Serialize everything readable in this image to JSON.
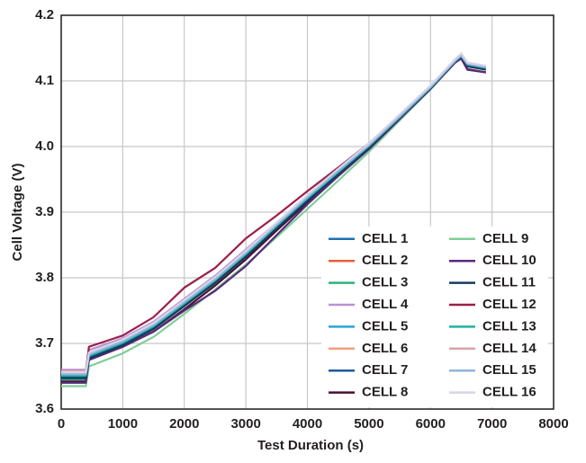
{
  "chart_data": {
    "type": "line",
    "x_label": "Test Duration (s)",
    "y_label": "Cell Voltage (V)",
    "x": [
      0,
      400,
      450,
      1000,
      1500,
      2000,
      2500,
      3000,
      3500,
      4000,
      4500,
      5000,
      5500,
      6000,
      6400,
      6500,
      6600,
      6900
    ],
    "xlim": [
      0,
      8000
    ],
    "xticks": [
      0,
      1000,
      2000,
      3000,
      4000,
      5000,
      6000,
      7000,
      8000
    ],
    "ylim": [
      3.6,
      4.2
    ],
    "yticks": [
      3.6,
      3.7,
      3.8,
      3.9,
      {
        "value": 4,
        "label": "4.0"
      },
      4.1,
      4.2
    ],
    "grid": true,
    "legend": "lower right",
    "series": [
      {
        "name": "CELL 1",
        "color": "#1f6fb2",
        "values": [
          3.65,
          3.65,
          3.68,
          3.7,
          3.725,
          3.76,
          3.795,
          3.835,
          3.878,
          3.92,
          3.96,
          4.0,
          4.045,
          4.09,
          4.13,
          4.138,
          4.125,
          4.12
        ]
      },
      {
        "name": "CELL 2",
        "color": "#e8603c",
        "values": [
          3.655,
          3.655,
          3.685,
          3.703,
          3.728,
          3.763,
          3.798,
          3.838,
          3.88,
          3.922,
          3.962,
          4.002,
          4.046,
          4.09,
          4.131,
          4.139,
          4.126,
          4.121
        ]
      },
      {
        "name": "CELL 3",
        "color": "#2cb27a",
        "values": [
          3.645,
          3.645,
          3.678,
          3.698,
          3.722,
          3.757,
          3.792,
          3.832,
          3.875,
          3.918,
          3.958,
          3.999,
          4.044,
          4.089,
          4.13,
          4.137,
          4.124,
          4.119
        ]
      },
      {
        "name": "CELL 4",
        "color": "#b993d1",
        "values": [
          3.66,
          3.66,
          3.69,
          3.708,
          3.733,
          3.768,
          3.803,
          3.843,
          3.884,
          3.925,
          3.965,
          4.004,
          4.048,
          4.092,
          4.133,
          4.14,
          4.127,
          4.122
        ]
      },
      {
        "name": "CELL 5",
        "color": "#2aa3d8",
        "values": [
          3.652,
          3.652,
          3.682,
          3.702,
          3.727,
          3.762,
          3.797,
          3.837,
          3.88,
          3.922,
          3.961,
          4.001,
          4.046,
          4.09,
          4.131,
          4.138,
          4.125,
          4.12
        ]
      },
      {
        "name": "CELL 6",
        "color": "#f2a07b",
        "values": [
          3.657,
          3.657,
          3.686,
          3.705,
          3.73,
          3.765,
          3.8,
          3.84,
          3.882,
          3.923,
          3.963,
          4.002,
          4.046,
          4.091,
          4.131,
          4.139,
          4.126,
          4.121
        ]
      },
      {
        "name": "CELL 7",
        "color": "#1e5a96",
        "values": [
          3.648,
          3.648,
          3.678,
          3.698,
          3.723,
          3.758,
          3.793,
          3.833,
          3.876,
          3.918,
          3.959,
          3.999,
          4.044,
          4.089,
          4.13,
          4.137,
          4.124,
          4.119
        ]
      },
      {
        "name": "CELL 8",
        "color": "#4a1030",
        "values": [
          3.642,
          3.642,
          3.675,
          3.695,
          3.718,
          3.752,
          3.788,
          3.828,
          3.872,
          3.915,
          3.956,
          3.997,
          4.042,
          4.088,
          4.128,
          4.135,
          4.118,
          4.113
        ]
      },
      {
        "name": "CELL 9",
        "color": "#7fcf98",
        "values": [
          3.635,
          3.635,
          3.665,
          3.685,
          3.71,
          3.745,
          3.782,
          3.82,
          3.862,
          3.905,
          3.948,
          3.992,
          4.04,
          4.087,
          4.129,
          4.136,
          4.124,
          4.119
        ]
      },
      {
        "name": "CELL 10",
        "color": "#5a2a7a",
        "values": [
          3.64,
          3.64,
          3.675,
          3.695,
          3.718,
          3.75,
          3.78,
          3.818,
          3.865,
          3.912,
          3.955,
          3.996,
          4.042,
          4.088,
          4.128,
          4.134,
          4.117,
          4.113
        ]
      },
      {
        "name": "CELL 11",
        "color": "#163a5e",
        "values": [
          3.647,
          3.647,
          3.677,
          3.697,
          3.722,
          3.757,
          3.792,
          3.832,
          3.875,
          3.917,
          3.958,
          3.998,
          4.044,
          4.089,
          4.129,
          4.137,
          4.122,
          4.117
        ]
      },
      {
        "name": "CELL 12",
        "color": "#9c1f4a",
        "values": [
          3.655,
          3.655,
          3.695,
          3.712,
          3.74,
          3.785,
          3.815,
          3.86,
          3.895,
          3.932,
          3.968,
          4.005,
          4.048,
          4.092,
          4.132,
          4.139,
          4.126,
          4.121
        ]
      },
      {
        "name": "CELL 13",
        "color": "#1fb0a0",
        "values": [
          3.651,
          3.651,
          3.681,
          3.701,
          3.726,
          3.761,
          3.796,
          3.836,
          3.879,
          3.921,
          3.961,
          4.001,
          4.045,
          4.09,
          4.13,
          4.138,
          4.125,
          4.12
        ]
      },
      {
        "name": "CELL 14",
        "color": "#d9a3a8",
        "values": [
          3.654,
          3.654,
          3.684,
          3.704,
          3.729,
          3.764,
          3.799,
          3.839,
          3.882,
          3.924,
          3.964,
          4.003,
          4.047,
          4.091,
          4.131,
          4.139,
          4.126,
          4.121
        ]
      },
      {
        "name": "CELL 15",
        "color": "#8fb5d9",
        "values": [
          3.653,
          3.653,
          3.683,
          3.703,
          3.728,
          3.763,
          3.798,
          3.838,
          3.881,
          3.923,
          3.963,
          4.002,
          4.046,
          4.091,
          4.131,
          4.139,
          4.126,
          4.121
        ]
      },
      {
        "name": "CELL 16",
        "color": "#d8d3ea",
        "values": [
          3.656,
          3.656,
          3.686,
          3.706,
          3.731,
          3.766,
          3.801,
          3.841,
          3.884,
          3.926,
          3.966,
          4.005,
          4.049,
          4.093,
          4.133,
          4.142,
          4.128,
          4.123
        ]
      }
    ]
  }
}
